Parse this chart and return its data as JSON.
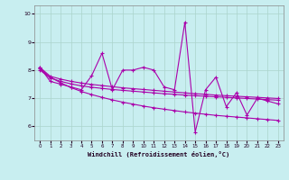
{
  "xlabel": "Windchill (Refroidissement éolien,°C)",
  "xlim": [
    -0.5,
    23.5
  ],
  "ylim": [
    5.5,
    10.3
  ],
  "yticks": [
    6,
    7,
    8,
    9,
    10
  ],
  "xticks": [
    0,
    1,
    2,
    3,
    4,
    5,
    6,
    7,
    8,
    9,
    10,
    11,
    12,
    13,
    14,
    15,
    16,
    17,
    18,
    19,
    20,
    21,
    22,
    23
  ],
  "background_color": "#c8eef0",
  "grid_color": "#aad4cc",
  "line_color": "#aa00aa",
  "line_width": 0.8,
  "marker": "+",
  "marker_size": 3,
  "series_main": [
    8.1,
    7.6,
    7.5,
    7.4,
    7.3,
    7.8,
    8.6,
    7.3,
    8.0,
    8.0,
    8.1,
    8.0,
    7.4,
    7.3,
    9.7,
    5.8,
    7.3,
    7.75,
    6.7,
    7.2,
    6.4,
    7.0,
    6.9,
    6.8
  ],
  "series_trend1": [
    8.1,
    7.78,
    7.68,
    7.6,
    7.54,
    7.49,
    7.45,
    7.41,
    7.37,
    7.34,
    7.31,
    7.28,
    7.25,
    7.22,
    7.19,
    7.16,
    7.14,
    7.11,
    7.09,
    7.07,
    7.05,
    7.03,
    7.01,
    6.99
  ],
  "series_trend2": [
    8.0,
    7.72,
    7.6,
    7.51,
    7.44,
    7.39,
    7.35,
    7.31,
    7.28,
    7.25,
    7.22,
    7.19,
    7.16,
    7.14,
    7.11,
    7.09,
    7.07,
    7.05,
    7.03,
    7.01,
    6.99,
    6.97,
    6.95,
    6.93
  ],
  "series_steep": [
    8.05,
    7.75,
    7.55,
    7.38,
    7.24,
    7.13,
    7.03,
    6.94,
    6.86,
    6.79,
    6.72,
    6.66,
    6.61,
    6.56,
    6.51,
    6.47,
    6.43,
    6.39,
    6.36,
    6.33,
    6.3,
    6.27,
    6.24,
    6.21
  ],
  "fig_width": 3.2,
  "fig_height": 2.0,
  "dpi": 100
}
